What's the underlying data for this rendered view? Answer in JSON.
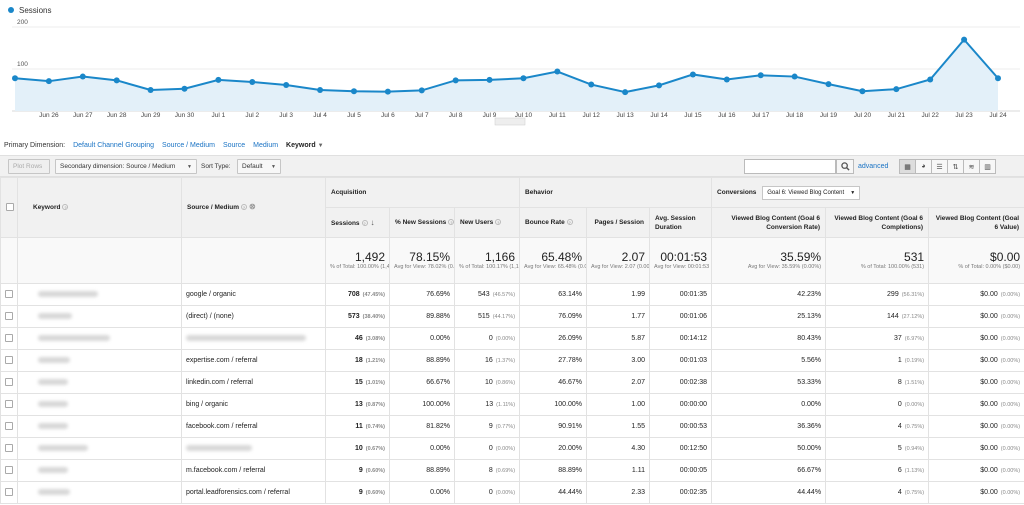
{
  "chart_data": {
    "type": "area",
    "series": [
      {
        "name": "Sessions",
        "values": [
          78,
          71,
          82,
          73,
          50,
          53,
          74,
          69,
          62,
          50,
          47,
          46,
          49,
          73,
          74,
          78,
          94,
          63,
          45,
          61,
          87,
          75,
          85,
          82,
          64,
          47,
          52,
          75,
          170,
          78
        ]
      }
    ],
    "x": [
      "",
      "Jun 26",
      "Jun 27",
      "Jun 28",
      "Jun 29",
      "Jun 30",
      "Jul 1",
      "Jul 2",
      "Jul 3",
      "Jul 4",
      "Jul 5",
      "Jul 6",
      "Jul 7",
      "Jul 8",
      "Jul 9",
      "Jul 10",
      "Jul 11",
      "Jul 12",
      "Jul 13",
      "Jul 14",
      "Jul 15",
      "Jul 16",
      "Jul 17",
      "Jul 18",
      "Jul 19",
      "Jul 20",
      "Jul 21",
      "Jul 22",
      "Jul 23",
      "Jul 24"
    ],
    "yticks": [
      "200",
      "100"
    ],
    "ylim": [
      0,
      200
    ],
    "color": "#1a87c9",
    "fill": "#e3f0f9"
  },
  "legend": {
    "label": "Sessions"
  },
  "dimensions": {
    "label": "Primary Dimension:",
    "items": [
      "Default Channel Grouping",
      "Source / Medium",
      "Source",
      "Medium"
    ],
    "active": "Keyword"
  },
  "toolbar": {
    "plot_rows": "Plot Rows",
    "secondary": "Secondary dimension: Source / Medium",
    "sort_label": "Sort Type:",
    "sort_value": "Default",
    "advanced": "advanced",
    "search_placeholder": ""
  },
  "table": {
    "groups": {
      "acquisition": "Acquisition",
      "behavior": "Behavior",
      "conversions": "Conversions",
      "goal": "Goal 6: Viewed Blog Content"
    },
    "headers": {
      "keyword": "Keyword",
      "source": "Source / Medium",
      "sessions": "Sessions",
      "new_sessions": "% New Sessions",
      "new_users": "New Users",
      "bounce": "Bounce Rate",
      "pages": "Pages / Session",
      "duration": "Avg. Session Duration",
      "conv_rate": "Viewed Blog Content (Goal 6 Conversion Rate)",
      "completions": "Viewed Blog Content (Goal 6 Completions)",
      "value": "Viewed Blog Content (Goal 6 Value)"
    },
    "totals": [
      {
        "big": "1,492",
        "small": "% of Total: 100.00% (1,492)"
      },
      {
        "big": "78.15%",
        "small": "Avg for View: 78.02% (0.17%)"
      },
      {
        "big": "1,166",
        "small": "% of Total: 100.17% (1,164)"
      },
      {
        "big": "65.48%",
        "small": "Avg for View: 65.48% (0.00%)"
      },
      {
        "big": "2.07",
        "small": "Avg for View: 2.07 (0.00%)"
      },
      {
        "big": "00:01:53",
        "small": "Avg for View: 00:01:53 (0.00%)"
      },
      {
        "big": "35.59%",
        "small": "Avg for View: 35.59% (0.00%)"
      },
      {
        "big": "531",
        "small": "% of Total: 100.00% (531)"
      },
      {
        "big": "$0.00",
        "small": "% of Total: 0.00% ($0.00)"
      }
    ],
    "rows": [
      {
        "source": "google / organic",
        "sessions": "708",
        "sessions_pct": "(47.45%)",
        "new_sessions": "76.69%",
        "new_users": "543",
        "new_users_pct": "(46.57%)",
        "bounce": "63.14%",
        "pages": "1.99",
        "duration": "00:01:35",
        "conv": "42.23%",
        "comp": "299",
        "comp_pct": "(56.31%)",
        "value": "$0.00",
        "value_pct": "(0.00%)"
      },
      {
        "source": "(direct) / (none)",
        "sessions": "573",
        "sessions_pct": "(38.40%)",
        "new_sessions": "89.88%",
        "new_users": "515",
        "new_users_pct": "(44.17%)",
        "bounce": "76.09%",
        "pages": "1.77",
        "duration": "00:01:06",
        "conv": "25.13%",
        "comp": "144",
        "comp_pct": "(27.12%)",
        "value": "$0.00",
        "value_pct": "(0.00%)"
      },
      {
        "source": "",
        "sessions": "46",
        "sessions_pct": "(3.08%)",
        "new_sessions": "0.00%",
        "new_users": "0",
        "new_users_pct": "(0.00%)",
        "bounce": "26.09%",
        "pages": "5.87",
        "duration": "00:14:12",
        "conv": "80.43%",
        "comp": "37",
        "comp_pct": "(6.97%)",
        "value": "$0.00",
        "value_pct": "(0.00%)"
      },
      {
        "source": "expertise.com / referral",
        "sessions": "18",
        "sessions_pct": "(1.21%)",
        "new_sessions": "88.89%",
        "new_users": "16",
        "new_users_pct": "(1.37%)",
        "bounce": "27.78%",
        "pages": "3.00",
        "duration": "00:01:03",
        "conv": "5.56%",
        "comp": "1",
        "comp_pct": "(0.19%)",
        "value": "$0.00",
        "value_pct": "(0.00%)"
      },
      {
        "source": "linkedin.com / referral",
        "sessions": "15",
        "sessions_pct": "(1.01%)",
        "new_sessions": "66.67%",
        "new_users": "10",
        "new_users_pct": "(0.86%)",
        "bounce": "46.67%",
        "pages": "2.07",
        "duration": "00:02:38",
        "conv": "53.33%",
        "comp": "8",
        "comp_pct": "(1.51%)",
        "value": "$0.00",
        "value_pct": "(0.00%)"
      },
      {
        "source": "bing / organic",
        "sessions": "13",
        "sessions_pct": "(0.87%)",
        "new_sessions": "100.00%",
        "new_users": "13",
        "new_users_pct": "(1.11%)",
        "bounce": "100.00%",
        "pages": "1.00",
        "duration": "00:00:00",
        "conv": "0.00%",
        "comp": "0",
        "comp_pct": "(0.00%)",
        "value": "$0.00",
        "value_pct": "(0.00%)"
      },
      {
        "source": "facebook.com / referral",
        "sessions": "11",
        "sessions_pct": "(0.74%)",
        "new_sessions": "81.82%",
        "new_users": "9",
        "new_users_pct": "(0.77%)",
        "bounce": "90.91%",
        "pages": "1.55",
        "duration": "00:00:53",
        "conv": "36.36%",
        "comp": "4",
        "comp_pct": "(0.75%)",
        "value": "$0.00",
        "value_pct": "(0.00%)"
      },
      {
        "source": "",
        "sessions": "10",
        "sessions_pct": "(0.67%)",
        "new_sessions": "0.00%",
        "new_users": "0",
        "new_users_pct": "(0.00%)",
        "bounce": "20.00%",
        "pages": "4.30",
        "duration": "00:12:50",
        "conv": "50.00%",
        "comp": "5",
        "comp_pct": "(0.94%)",
        "value": "$0.00",
        "value_pct": "(0.00%)"
      },
      {
        "source": "m.facebook.com / referral",
        "sessions": "9",
        "sessions_pct": "(0.60%)",
        "new_sessions": "88.89%",
        "new_users": "8",
        "new_users_pct": "(0.69%)",
        "bounce": "88.89%",
        "pages": "1.11",
        "duration": "00:00:05",
        "conv": "66.67%",
        "comp": "6",
        "comp_pct": "(1.13%)",
        "value": "$0.00",
        "value_pct": "(0.00%)"
      },
      {
        "source": "portal.leadforensics.com / referral",
        "sessions": "9",
        "sessions_pct": "(0.60%)",
        "new_sessions": "0.00%",
        "new_users": "0",
        "new_users_pct": "(0.00%)",
        "bounce": "44.44%",
        "pages": "2.33",
        "duration": "00:02:35",
        "conv": "44.44%",
        "comp": "4",
        "comp_pct": "(0.75%)",
        "value": "$0.00",
        "value_pct": "(0.00%)"
      }
    ]
  }
}
